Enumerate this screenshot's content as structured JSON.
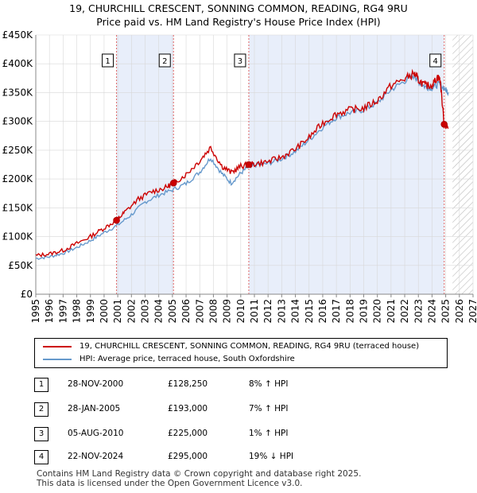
{
  "title_line1": "19, CHURCHILL CRESCENT, SONNING COMMON, READING, RG4 9RU",
  "title_line2": "Price paid vs. HM Land Registry's House Price Index (HPI)",
  "chart_data": {
    "type": "line",
    "title": "19, CHURCHILL CRESCENT, SONNING COMMON, READING, RG4 9RU — Price paid vs. HM Land Registry's House Price Index (HPI)",
    "xlim": [
      1995,
      2027
    ],
    "ylim": [
      0,
      450000
    ],
    "x_ticks": [
      1995,
      1996,
      1997,
      1998,
      1999,
      2000,
      2001,
      2002,
      2003,
      2004,
      2005,
      2006,
      2007,
      2008,
      2009,
      2010,
      2011,
      2012,
      2013,
      2014,
      2015,
      2016,
      2017,
      2018,
      2019,
      2020,
      2021,
      2022,
      2023,
      2024,
      2025,
      2026,
      2027
    ],
    "y_ticks": [
      0,
      50000,
      100000,
      150000,
      200000,
      250000,
      300000,
      350000,
      400000,
      450000
    ],
    "y_tick_labels": [
      "£0",
      "£50K",
      "£100K",
      "£150K",
      "£200K",
      "£250K",
      "£300K",
      "£350K",
      "£400K",
      "£450K"
    ],
    "shaded_periods": [
      [
        2000.91,
        2005.08
      ],
      [
        2010.59,
        2024.89
      ]
    ],
    "future_hatch_from": 2025.5,
    "series": [
      {
        "name": "19, CHURCHILL CRESCENT, SONNING COMMON, READING, RG4 9RU (terraced house)",
        "color": "#cc0000",
        "x": [
          1995,
          1996,
          1997,
          1998,
          1999,
          2000,
          2000.91,
          2001.5,
          2002.5,
          2003.5,
          2004.5,
          2005.08,
          2006,
          2007,
          2007.8,
          2008.6,
          2009.3,
          2010,
          2010.59,
          2011,
          2012,
          2013,
          2014,
          2015,
          2016,
          2017,
          2018,
          2019,
          2020,
          2021,
          2022,
          2022.7,
          2023,
          2023.5,
          2024,
          2024.4,
          2024.6,
          2024.89,
          2025.2
        ],
        "values": [
          67000,
          70000,
          76000,
          88000,
          100000,
          115000,
          128250,
          142000,
          165000,
          178000,
          185000,
          193000,
          208000,
          232000,
          255000,
          223000,
          211000,
          222000,
          225000,
          226000,
          230000,
          238000,
          252000,
          272000,
          297000,
          313000,
          320000,
          323000,
          336000,
          362000,
          374000,
          383000,
          372000,
          362000,
          363000,
          377000,
          372000,
          295000,
          288000
        ]
      },
      {
        "name": "HPI: Average price, terraced house, South Oxfordshire",
        "color": "#6699cc",
        "x": [
          1995,
          1996,
          1997,
          1998,
          1999,
          2000,
          2001,
          2002,
          2003,
          2004,
          2005,
          2006,
          2007,
          2007.8,
          2008.6,
          2009.3,
          2010,
          2010.59,
          2011,
          2012,
          2013,
          2014,
          2015,
          2016,
          2017,
          2018,
          2019,
          2020,
          2021,
          2022,
          2022.7,
          2023,
          2023.5,
          2024,
          2024.5,
          2025,
          2025.2
        ],
        "values": [
          62000,
          65000,
          71000,
          81000,
          93000,
          107000,
          120000,
          138000,
          160000,
          172000,
          181000,
          192000,
          212000,
          237000,
          210000,
          193000,
          210000,
          222000,
          224000,
          227000,
          235000,
          248000,
          268000,
          290000,
          307000,
          315000,
          320000,
          332000,
          355000,
          370000,
          380000,
          370000,
          360000,
          358000,
          365000,
          355000,
          350000
        ]
      }
    ],
    "annotations": [
      {
        "label": "1",
        "x": 2000.91,
        "y": 128250
      },
      {
        "label": "2",
        "x": 2005.08,
        "y": 193000
      },
      {
        "label": "3",
        "x": 2010.59,
        "y": 225000
      },
      {
        "label": "4",
        "x": 2024.89,
        "y": 295000
      }
    ]
  },
  "legend": {
    "property": "19, CHURCHILL CRESCENT, SONNING COMMON, READING, RG4 9RU (terraced house)",
    "hpi": "HPI: Average price, terraced house, South Oxfordshire"
  },
  "transactions": [
    {
      "num": "1",
      "date": "28-NOV-2000",
      "price": "£128,250",
      "hpi": "8% ↑ HPI"
    },
    {
      "num": "2",
      "date": "28-JAN-2005",
      "price": "£193,000",
      "hpi": "7% ↑ HPI"
    },
    {
      "num": "3",
      "date": "05-AUG-2010",
      "price": "£225,000",
      "hpi": "1% ↑ HPI"
    },
    {
      "num": "4",
      "date": "22-NOV-2024",
      "price": "£295,000",
      "hpi": "19% ↓ HPI"
    }
  ],
  "footer": "Contains HM Land Registry data © Crown copyright and database right 2025.\nThis data is licensed under the Open Government Licence v3.0."
}
